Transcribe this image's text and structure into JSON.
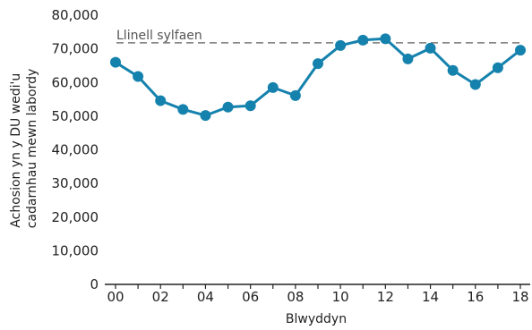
{
  "chart_data": {
    "type": "line",
    "x": [
      "00",
      "01",
      "02",
      "03",
      "04",
      "05",
      "06",
      "07",
      "08",
      "09",
      "10",
      "11",
      "12",
      "13",
      "14",
      "15",
      "16",
      "17",
      "18"
    ],
    "values": [
      66000,
      61800,
      54600,
      52000,
      50200,
      52700,
      53100,
      58500,
      56100,
      65600,
      71000,
      72600,
      73000,
      67000,
      70200,
      63600,
      59400,
      64400,
      69600
    ],
    "x_tick_labels": [
      "00",
      "02",
      "04",
      "06",
      "08",
      "10",
      "12",
      "14",
      "16",
      "18"
    ],
    "y_ticks": [
      0,
      10000,
      20000,
      30000,
      40000,
      50000,
      60000,
      70000,
      80000
    ],
    "y_tick_labels": [
      "0",
      "10,000",
      "20,000",
      "30,000",
      "40,000",
      "50,000",
      "60,000",
      "70,000",
      "80,000"
    ],
    "ylim": [
      0,
      80000
    ],
    "xlabel": "Blwyddyn",
    "ylabel_lines": [
      "Achosion yn y DU wedi'u",
      "cadarnhau mewn labordy"
    ],
    "baseline": {
      "label": "Llinell sylfaen",
      "value": 71800
    },
    "colors": {
      "line": "#1582ad",
      "baseline": "#777777",
      "axis": "#222222"
    },
    "grid": false,
    "legend": "none"
  }
}
